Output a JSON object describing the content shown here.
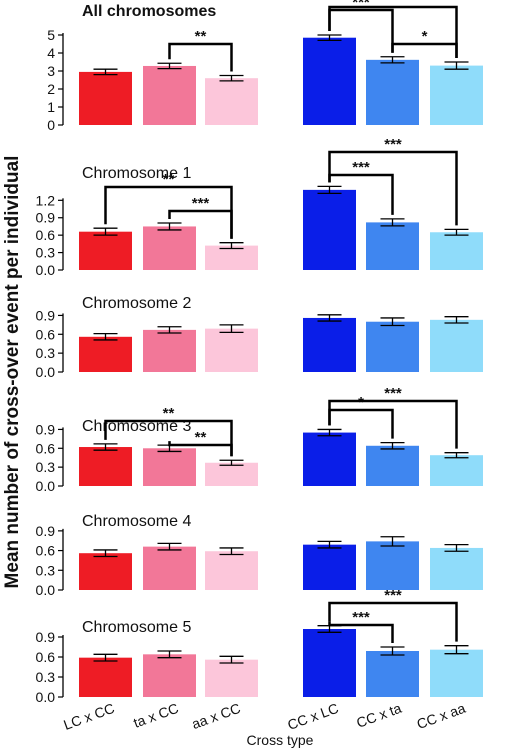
{
  "ylabel": "Mean number of cross-over event per individual",
  "xlabel": "Cross type",
  "categories": [
    "LC x CC",
    "ta x CC",
    "aa x CC",
    "CC x LC",
    "CC x ta",
    "CC x aa"
  ],
  "colors": [
    "#ee1c25",
    "#f27798",
    "#fcc6da",
    "#0a1ee8",
    "#3f86f0",
    "#8fdcfa"
  ],
  "chart_data": [
    {
      "type": "bar",
      "title": "All chromosomes",
      "categories": [
        "LC x CC",
        "ta x CC",
        "aa x CC",
        "CC x LC",
        "CC x ta",
        "CC x aa"
      ],
      "values": [
        2.95,
        3.28,
        2.6,
        4.85,
        3.62,
        3.3
      ],
      "errors": [
        0.15,
        0.15,
        0.15,
        0.15,
        0.17,
        0.2
      ],
      "ylim": [
        0,
        5.5
      ],
      "yticks": [
        "0",
        "1",
        "2",
        "3",
        "4",
        "5"
      ],
      "significance": [
        {
          "from": 1,
          "to": 2,
          "label": "**"
        },
        {
          "from": 3,
          "to": 4,
          "label": "***"
        },
        {
          "from": 4,
          "to": 5,
          "label": "*"
        },
        {
          "from": 3,
          "to": 5,
          "label": "***"
        }
      ]
    },
    {
      "type": "bar",
      "title": "Chromosome 1",
      "categories": [
        "LC x CC",
        "ta x CC",
        "aa x CC",
        "CC x LC",
        "CC x ta",
        "CC x aa"
      ],
      "values": [
        0.66,
        0.75,
        0.42,
        1.38,
        0.82,
        0.65
      ],
      "errors": [
        0.06,
        0.06,
        0.05,
        0.06,
        0.06,
        0.05
      ],
      "ylim": [
        0,
        1.55
      ],
      "yticks": [
        "0.0",
        "0.3",
        "0.6",
        "0.9",
        "1.2"
      ],
      "significance": [
        {
          "from": 1,
          "to": 2,
          "label": "***"
        },
        {
          "from": 0,
          "to": 2,
          "label": "**"
        },
        {
          "from": 3,
          "to": 4,
          "label": "***"
        },
        {
          "from": 3,
          "to": 5,
          "label": "***"
        }
      ]
    },
    {
      "type": "bar",
      "title": "Chromosome 2",
      "categories": [
        "LC x CC",
        "ta x CC",
        "aa x CC",
        "CC x LC",
        "CC x ta",
        "CC x aa"
      ],
      "values": [
        0.56,
        0.67,
        0.69,
        0.86,
        0.8,
        0.83
      ],
      "errors": [
        0.05,
        0.05,
        0.06,
        0.05,
        0.06,
        0.05
      ],
      "ylim": [
        0,
        1.05
      ],
      "yticks": [
        "0.0",
        "0.3",
        "0.6",
        "0.9"
      ],
      "significance": []
    },
    {
      "type": "bar",
      "title": "Chromosome 3",
      "categories": [
        "LC x CC",
        "ta x CC",
        "aa x CC",
        "CC x LC",
        "CC x ta",
        "CC x aa"
      ],
      "values": [
        0.62,
        0.6,
        0.37,
        0.85,
        0.64,
        0.49
      ],
      "errors": [
        0.05,
        0.05,
        0.04,
        0.05,
        0.05,
        0.04
      ],
      "ylim": [
        0,
        1.05
      ],
      "yticks": [
        "0.0",
        "0.3",
        "0.6",
        "0.9"
      ],
      "significance": [
        {
          "from": 1,
          "to": 2,
          "label": "**"
        },
        {
          "from": 0,
          "to": 2,
          "label": "**"
        },
        {
          "from": 3,
          "to": 4,
          "label": "*"
        },
        {
          "from": 3,
          "to": 5,
          "label": "***"
        }
      ]
    },
    {
      "type": "bar",
      "title": "Chromosome 4",
      "categories": [
        "LC x CC",
        "ta x CC",
        "aa x CC",
        "CC x LC",
        "CC x ta",
        "CC x aa"
      ],
      "values": [
        0.56,
        0.66,
        0.59,
        0.69,
        0.74,
        0.64
      ],
      "errors": [
        0.05,
        0.05,
        0.05,
        0.05,
        0.07,
        0.05
      ],
      "ylim": [
        0,
        1.05
      ],
      "yticks": [
        "0.0",
        "0.3",
        "0.6",
        "0.9"
      ],
      "significance": []
    },
    {
      "type": "bar",
      "title": "Chromosome 5",
      "categories": [
        "LC x CC",
        "ta x CC",
        "aa x CC",
        "CC x LC",
        "CC x ta",
        "CC x aa"
      ],
      "values": [
        0.59,
        0.64,
        0.56,
        1.02,
        0.69,
        0.71
      ],
      "errors": [
        0.05,
        0.05,
        0.05,
        0.05,
        0.06,
        0.06
      ],
      "ylim": [
        0,
        1.2
      ],
      "yticks": [
        "0.0",
        "0.3",
        "0.6",
        "0.9"
      ],
      "significance": [
        {
          "from": 3,
          "to": 4,
          "label": "***"
        },
        {
          "from": 3,
          "to": 5,
          "label": "***"
        }
      ]
    }
  ]
}
